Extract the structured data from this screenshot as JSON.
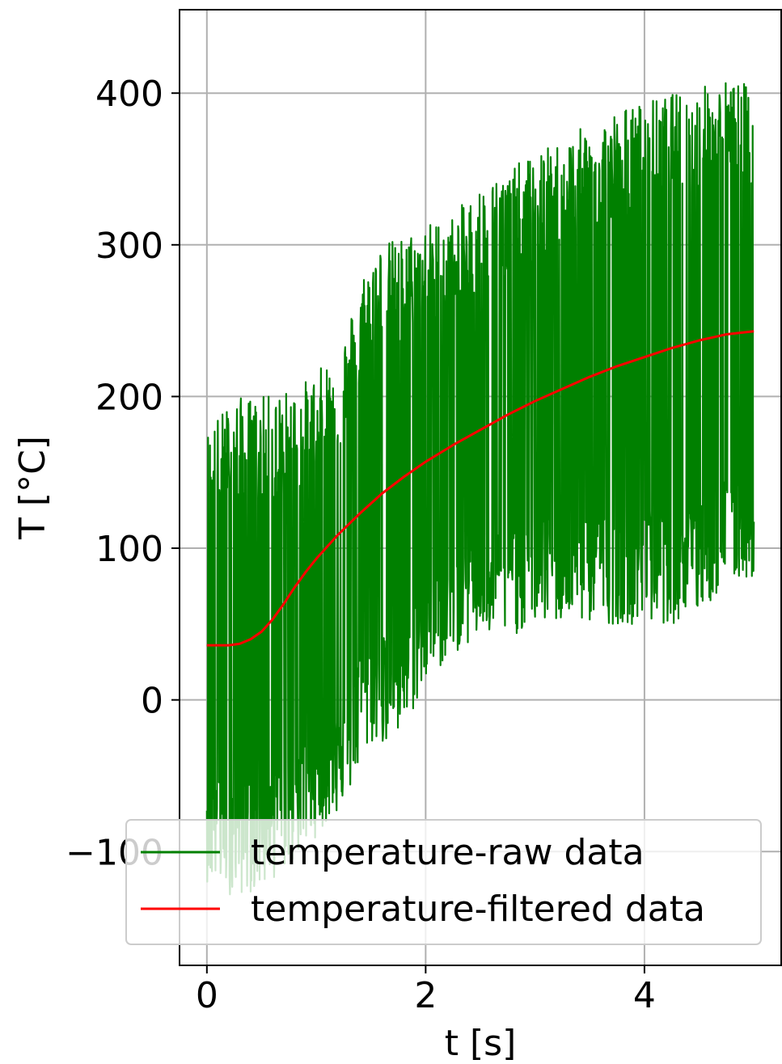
{
  "chart_data": {
    "type": "line",
    "xlabel": "t [s]",
    "ylabel": "T [°C]",
    "xlim": [
      -0.25,
      5.25
    ],
    "ylim": [
      -175,
      455
    ],
    "xticks": [
      0,
      2,
      4
    ],
    "xtick_labels": [
      "0",
      "2",
      "4"
    ],
    "yticks": [
      -100,
      0,
      100,
      200,
      300,
      400
    ],
    "ytick_labels": [
      "−100",
      "0",
      "100",
      "200",
      "300",
      "400"
    ],
    "grid": true,
    "legend_position": "bottom-right",
    "colors": {
      "raw": "#008000",
      "filtered": "#ff0000",
      "grid": "#b0b0b0"
    },
    "series": [
      {
        "name": "temperature-raw data",
        "color": "#008000",
        "style": "noisy band",
        "x": [
          0,
          0.25,
          0.5,
          0.75,
          1.0,
          1.25,
          1.5,
          1.75,
          2.0,
          2.25,
          2.5,
          2.75,
          3.0,
          3.25,
          3.5,
          3.75,
          4.0,
          4.25,
          4.5,
          4.75,
          5.0
        ],
        "y_min": [
          -120,
          -130,
          -125,
          -110,
          -90,
          -70,
          -30,
          -30,
          10,
          30,
          40,
          40,
          50,
          50,
          50,
          50,
          50,
          50,
          55,
          75,
          80
        ],
        "y_max": [
          180,
          200,
          200,
          205,
          215,
          240,
          300,
          305,
          315,
          320,
          340,
          350,
          360,
          370,
          380,
          390,
          395,
          400,
          405,
          410,
          405
        ]
      },
      {
        "name": "temperature-filtered data",
        "color": "#ff0000",
        "x": [
          0,
          0.1,
          0.2,
          0.3,
          0.4,
          0.5,
          0.6,
          0.7,
          0.8,
          0.9,
          1.0,
          1.2,
          1.4,
          1.6,
          1.8,
          2.0,
          2.25,
          2.5,
          2.75,
          3.0,
          3.25,
          3.5,
          3.75,
          4.0,
          4.25,
          4.5,
          4.75,
          5.0
        ],
        "y": [
          36,
          36,
          36,
          37,
          40,
          45,
          53,
          63,
          74,
          84,
          93,
          109,
          123,
          136,
          147,
          157,
          168,
          178,
          188,
          197,
          205,
          213,
          220,
          226,
          232,
          237,
          241,
          243
        ]
      }
    ]
  }
}
